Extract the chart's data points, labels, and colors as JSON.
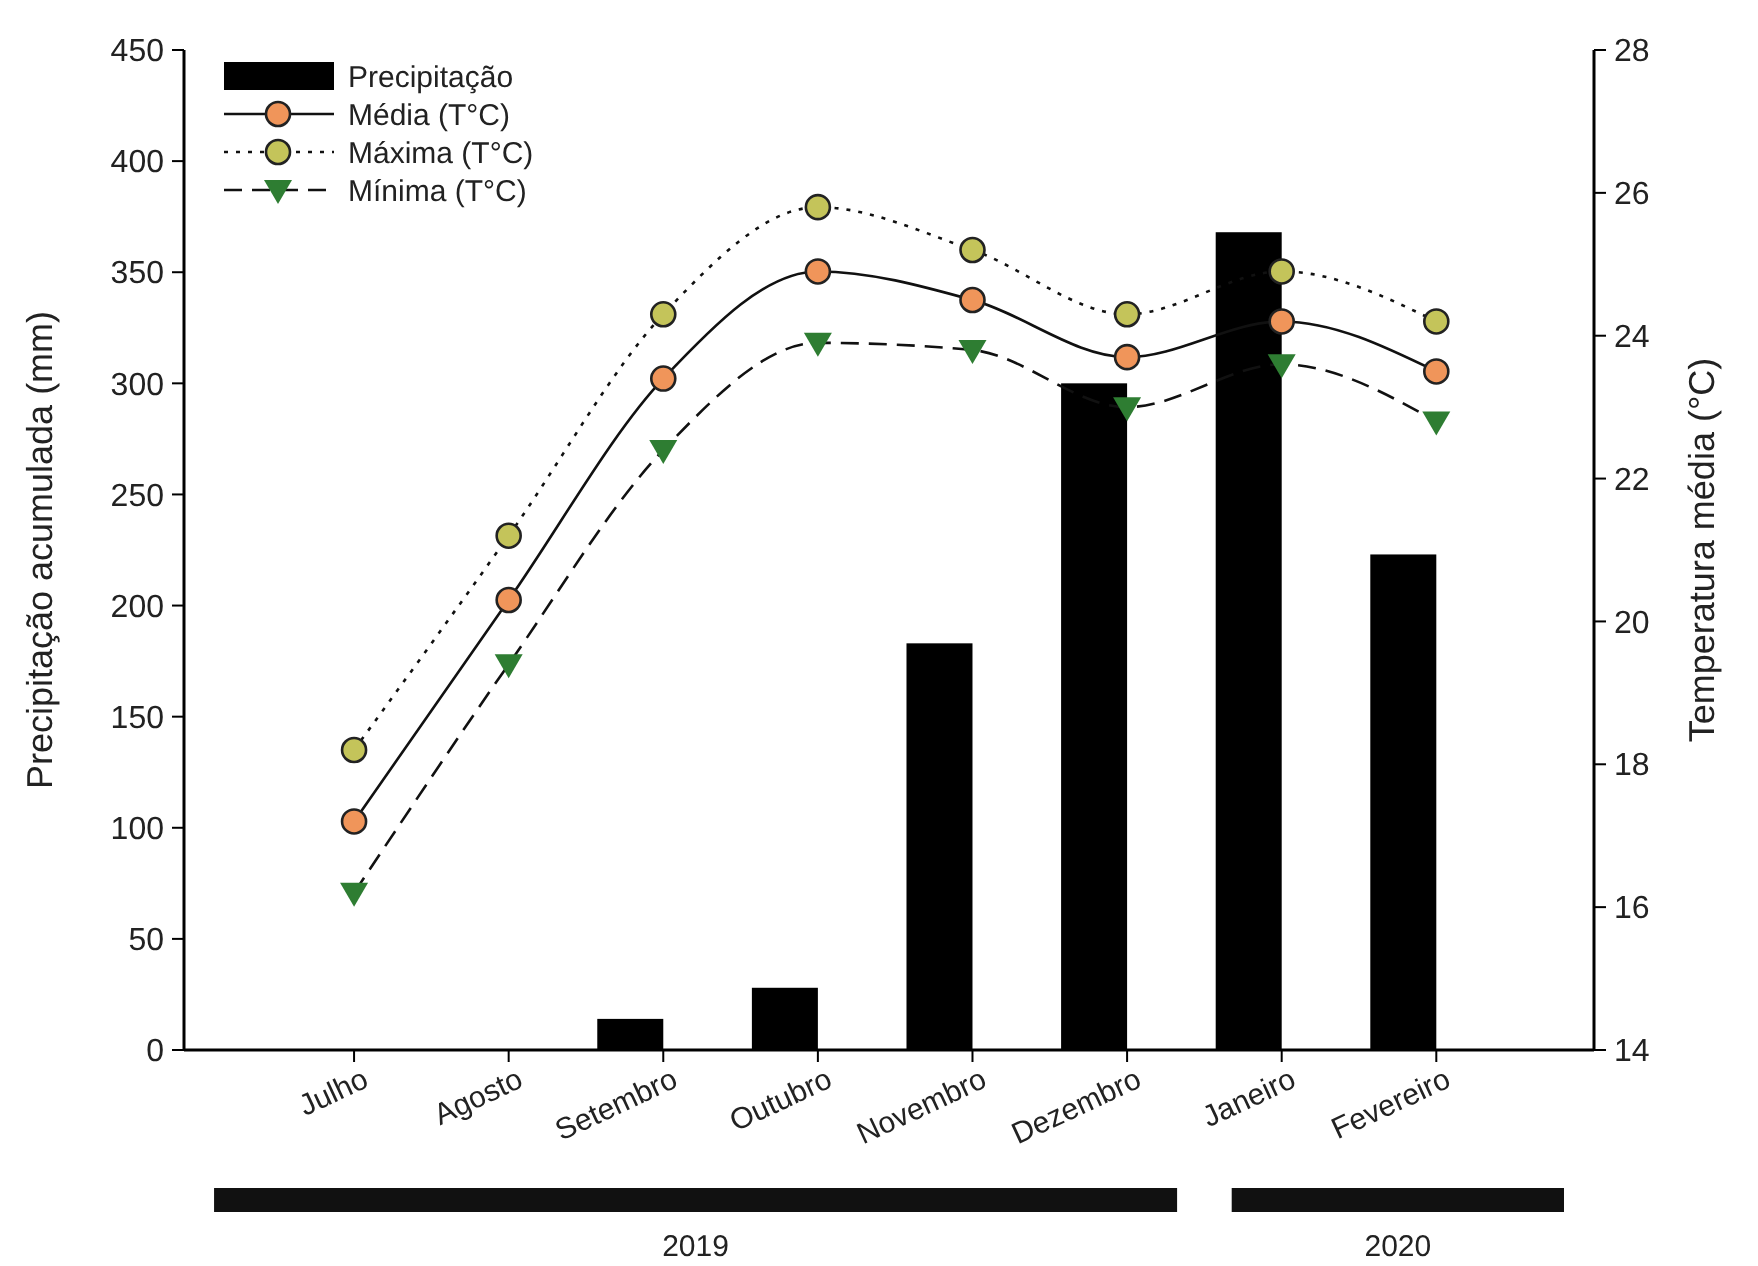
{
  "chart_data": {
    "type": "bar",
    "categories": [
      "Julho",
      "Agosto",
      "Setembro",
      "Outubro",
      "Novembro",
      "Dezembro",
      "Janeiro",
      "Fevereiro"
    ],
    "ylabel": "Precipitação acumulada (mm)",
    "y2label": "Temperatura média (°C)",
    "ylim": [
      0,
      450
    ],
    "yticks": [
      0,
      50,
      100,
      150,
      200,
      250,
      300,
      350,
      400,
      450
    ],
    "y2lim": [
      14,
      28
    ],
    "y2ticks": [
      14,
      16,
      18,
      20,
      22,
      24,
      26,
      28
    ],
    "series": [
      {
        "name": "Precipitação",
        "color": "#000000",
        "values": [
          0,
          0,
          14,
          28,
          183,
          300,
          368,
          223
        ]
      },
      {
        "name": "Média (T°C)",
        "type": "line",
        "axis": "y2",
        "color": "#f0955a",
        "marker": "circle",
        "line_style": "solid",
        "values": [
          17.2,
          20.3,
          23.4,
          24.9,
          24.5,
          23.7,
          24.2,
          23.5
        ]
      },
      {
        "name": "Máxima (T°C)",
        "type": "line",
        "axis": "y2",
        "color": "#c4c45a",
        "marker": "circle",
        "line_style": "dotted",
        "values": [
          18.2,
          21.2,
          24.3,
          25.8,
          25.2,
          24.3,
          24.9,
          24.2
        ]
      },
      {
        "name": "Mínima (T°C)",
        "type": "line",
        "axis": "y2",
        "color": "#2e7d32",
        "marker": "triangle",
        "line_style": "dashed",
        "values": [
          16.2,
          19.4,
          22.4,
          23.9,
          23.8,
          23.0,
          23.6,
          22.8
        ]
      }
    ],
    "annotations": [
      "2019",
      "2020"
    ],
    "legend": "top left",
    "grid": false
  }
}
